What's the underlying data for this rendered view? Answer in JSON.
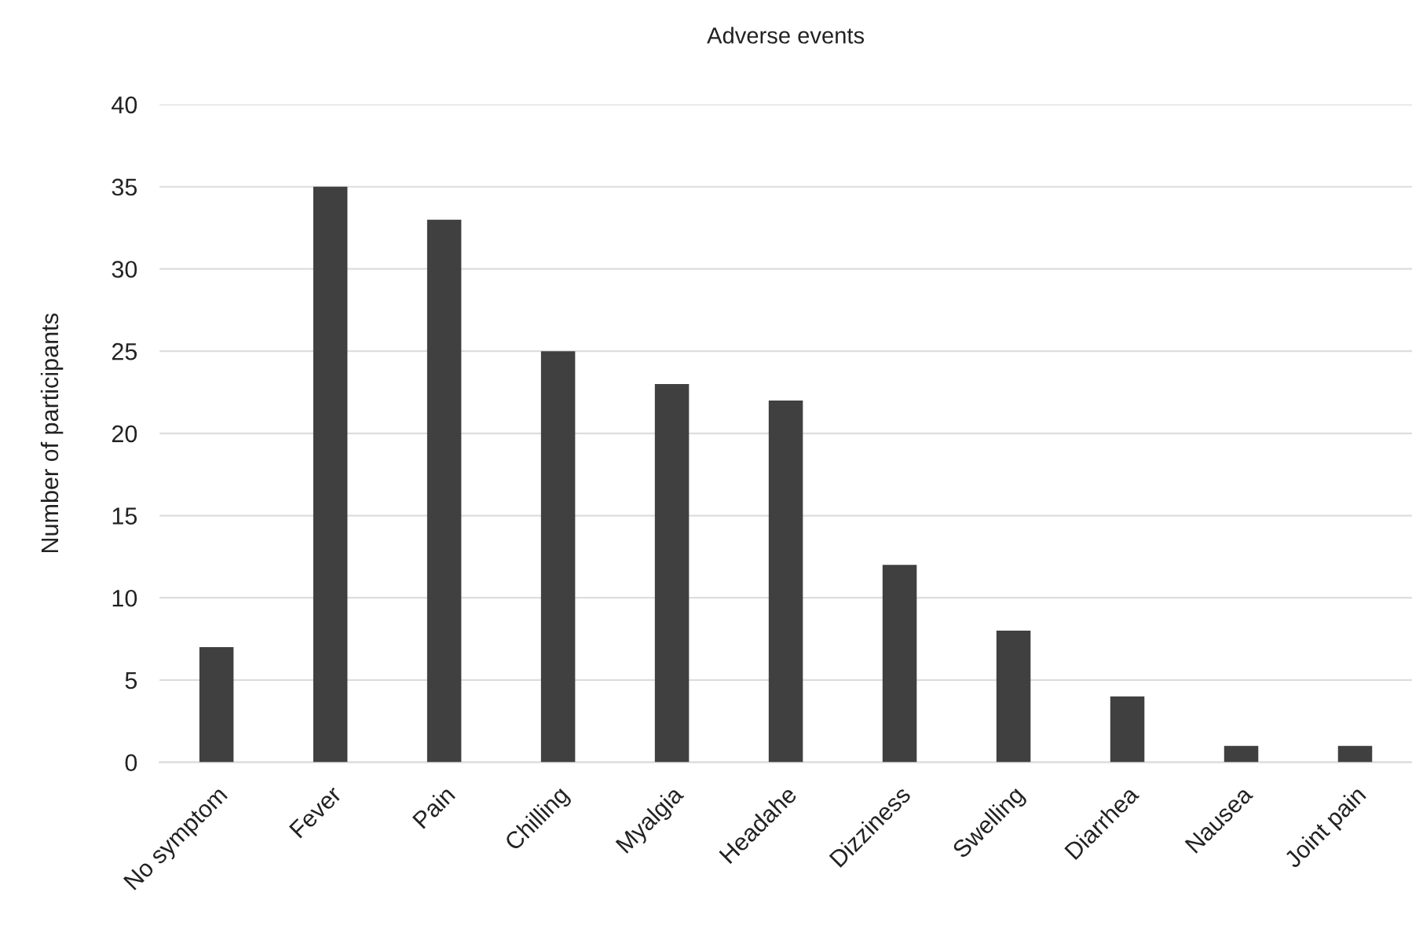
{
  "chart_data": {
    "type": "bar",
    "title": "Adverse events",
    "ylabel": "Number of participants",
    "categories": [
      "No symptom",
      "Fever",
      "Pain",
      "Chilling",
      "Myalgia",
      "Headahe",
      "Dizziness",
      "Swelling",
      "Diarrhea",
      "Nausea",
      "Joint pain"
    ],
    "values": [
      7,
      35,
      33,
      25,
      23,
      22,
      12,
      8,
      4,
      1,
      1
    ],
    "color": "#404040",
    "ylim": [
      0,
      40
    ],
    "yticks": [
      0,
      5,
      10,
      15,
      20,
      25,
      30,
      35,
      40
    ],
    "grid": "y"
  }
}
